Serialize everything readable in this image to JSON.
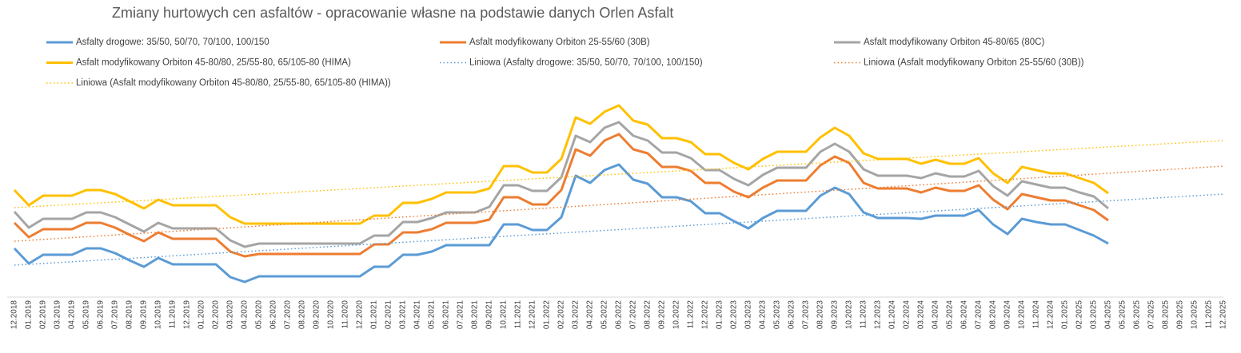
{
  "chart_data": {
    "type": "line",
    "title": "Zmiany hurtowych cen asfaltów - opracowanie własne na podstawie danych Orlen Asfalt",
    "categories": [
      "12.2018",
      "01.2019",
      "02.2019",
      "03.2019",
      "04.2019",
      "05.2019",
      "06.2019",
      "07.2019",
      "08.2019",
      "09.2019",
      "10.2019",
      "11.2019",
      "12.2019",
      "01.2020",
      "02.2020",
      "03.2020",
      "04.2020",
      "05.2020",
      "06.2020",
      "07.2020",
      "08.2020",
      "09.2020",
      "10.2020",
      "11.2020",
      "12.2020",
      "01.2021",
      "02.2021",
      "03.2021",
      "04.2021",
      "05.2021",
      "06.2021",
      "07.2021",
      "08.2021",
      "09.2021",
      "10.2021",
      "11.2021",
      "12.2021",
      "01.2022",
      "02.2022",
      "03.2022",
      "04.2022",
      "05.2022",
      "06.2022",
      "07.2022",
      "08.2022",
      "09.2022",
      "10.2022",
      "11.2022",
      "12.2022",
      "01.2023",
      "02.2023",
      "03.2023",
      "04.2023",
      "05.2023",
      "06.2023",
      "07.2023",
      "08.2023",
      "09.2023",
      "10.2023",
      "11.2023",
      "12.2023",
      "01.2024",
      "02.2024",
      "03.2024",
      "04.2024",
      "05.2024",
      "06.2024",
      "07.2024",
      "08.2024",
      "09.2024",
      "10.2024",
      "11.2024",
      "12.2024",
      "01.2025",
      "02.2025",
      "03.2025",
      "04.2025",
      "05.2025",
      "06.2025",
      "07.2025",
      "08.2025",
      "09.2025",
      "10.2025",
      "11.2025",
      "12.2025"
    ],
    "ylim": [
      0,
      270
    ],
    "series": [
      {
        "name": "Asfalty drogowe: 35/50, 50/70, 70/100, 100/150",
        "color": "#5b9bd5",
        "values": [
          59,
          40,
          51,
          51,
          51,
          59,
          59,
          53,
          44,
          36,
          47,
          39,
          39,
          39,
          39,
          23,
          17,
          24,
          24,
          24,
          24,
          24,
          24,
          24,
          24,
          36,
          36,
          51,
          51,
          55,
          63,
          63,
          63,
          63,
          89,
          89,
          82,
          82,
          98,
          150,
          141,
          157,
          164,
          145,
          140,
          123,
          123,
          118,
          103,
          103,
          93,
          84,
          97,
          106,
          106,
          106,
          125,
          135,
          127,
          104,
          97,
          97,
          97,
          96,
          100,
          100,
          100,
          107,
          89,
          77,
          96,
          92,
          89,
          89,
          82,
          75,
          65,
          null,
          null,
          null,
          null,
          null,
          null,
          null,
          null
        ]
      },
      {
        "name": "Asfalt modyfikowany Orbiton 25-55/60 (30B)",
        "color": "#ed7d31",
        "values": [
          91,
          73,
          83,
          83,
          83,
          91,
          91,
          85,
          76,
          68,
          79,
          71,
          71,
          71,
          71,
          55,
          49,
          52,
          52,
          52,
          52,
          52,
          52,
          52,
          52,
          64,
          64,
          79,
          79,
          83,
          91,
          91,
          91,
          95,
          123,
          123,
          114,
          114,
          132,
          183,
          175,
          194,
          202,
          183,
          178,
          161,
          161,
          156,
          141,
          141,
          130,
          123,
          135,
          144,
          144,
          144,
          163,
          174,
          166,
          141,
          134,
          134,
          134,
          129,
          135,
          131,
          131,
          138,
          120,
          108,
          127,
          123,
          119,
          119,
          113,
          107,
          94,
          null,
          null,
          null,
          null,
          null,
          null,
          null,
          null
        ]
      },
      {
        "name": "Asfalt modyfikowany Orbiton 45-80/65 (80C)",
        "color": "#a5a5a5",
        "values": [
          105,
          85,
          96,
          96,
          96,
          104,
          104,
          98,
          89,
          80,
          91,
          84,
          84,
          84,
          84,
          69,
          61,
          65,
          65,
          65,
          65,
          65,
          65,
          65,
          65,
          75,
          75,
          92,
          92,
          97,
          104,
          104,
          104,
          111,
          138,
          138,
          131,
          131,
          148,
          200,
          192,
          210,
          217,
          200,
          194,
          179,
          179,
          172,
          157,
          157,
          146,
          138,
          151,
          160,
          160,
          160,
          180,
          190,
          180,
          158,
          150,
          150,
          150,
          147,
          153,
          149,
          149,
          156,
          137,
          125,
          143,
          139,
          135,
          135,
          129,
          124,
          109,
          null,
          null,
          null,
          null,
          null,
          null,
          null,
          null
        ]
      },
      {
        "name": "Asfalt modyfikowany Orbiton 45-80/80, 25/55-80, 65/105-80 (HIMA)",
        "color": "#ffc000",
        "values": [
          132,
          113,
          125,
          125,
          125,
          132,
          132,
          127,
          118,
          109,
          120,
          113,
          113,
          113,
          113,
          98,
          90,
          90,
          90,
          90,
          90,
          90,
          90,
          90,
          90,
          100,
          100,
          116,
          116,
          121,
          129,
          129,
          129,
          134,
          162,
          162,
          154,
          154,
          171,
          223,
          215,
          230,
          238,
          219,
          214,
          197,
          197,
          192,
          177,
          177,
          166,
          158,
          171,
          180,
          180,
          180,
          198,
          210,
          200,
          178,
          171,
          171,
          171,
          165,
          170,
          165,
          165,
          172,
          153,
          141,
          161,
          157,
          153,
          153,
          147,
          141,
          128,
          null,
          null,
          null,
          null,
          null,
          null,
          null,
          null
        ]
      },
      {
        "name": "Liniowa (Asfalty drogowe: 35/50, 50/70, 70/100, 100/150)",
        "color": "#5b9bd5",
        "dotted": true,
        "x": [
          "12.2018",
          "12.2025"
        ],
        "values": [
          38,
          127
        ]
      },
      {
        "name": "Liniowa (Asfalt modyfikowany Orbiton 25-55/60 (30B))",
        "color": "#ed7d31",
        "dotted": true,
        "x": [
          "12.2018",
          "12.2025"
        ],
        "values": [
          68,
          162
        ]
      },
      {
        "name": "Liniowa (Asfalt modyfikowany Orbiton 45-80/80, 25/55-80, 65/105-80 (HIMA))",
        "color": "#ffc000",
        "dotted": true,
        "x": [
          "12.2018",
          "12.2025"
        ],
        "values": [
          110,
          194
        ]
      }
    ]
  }
}
